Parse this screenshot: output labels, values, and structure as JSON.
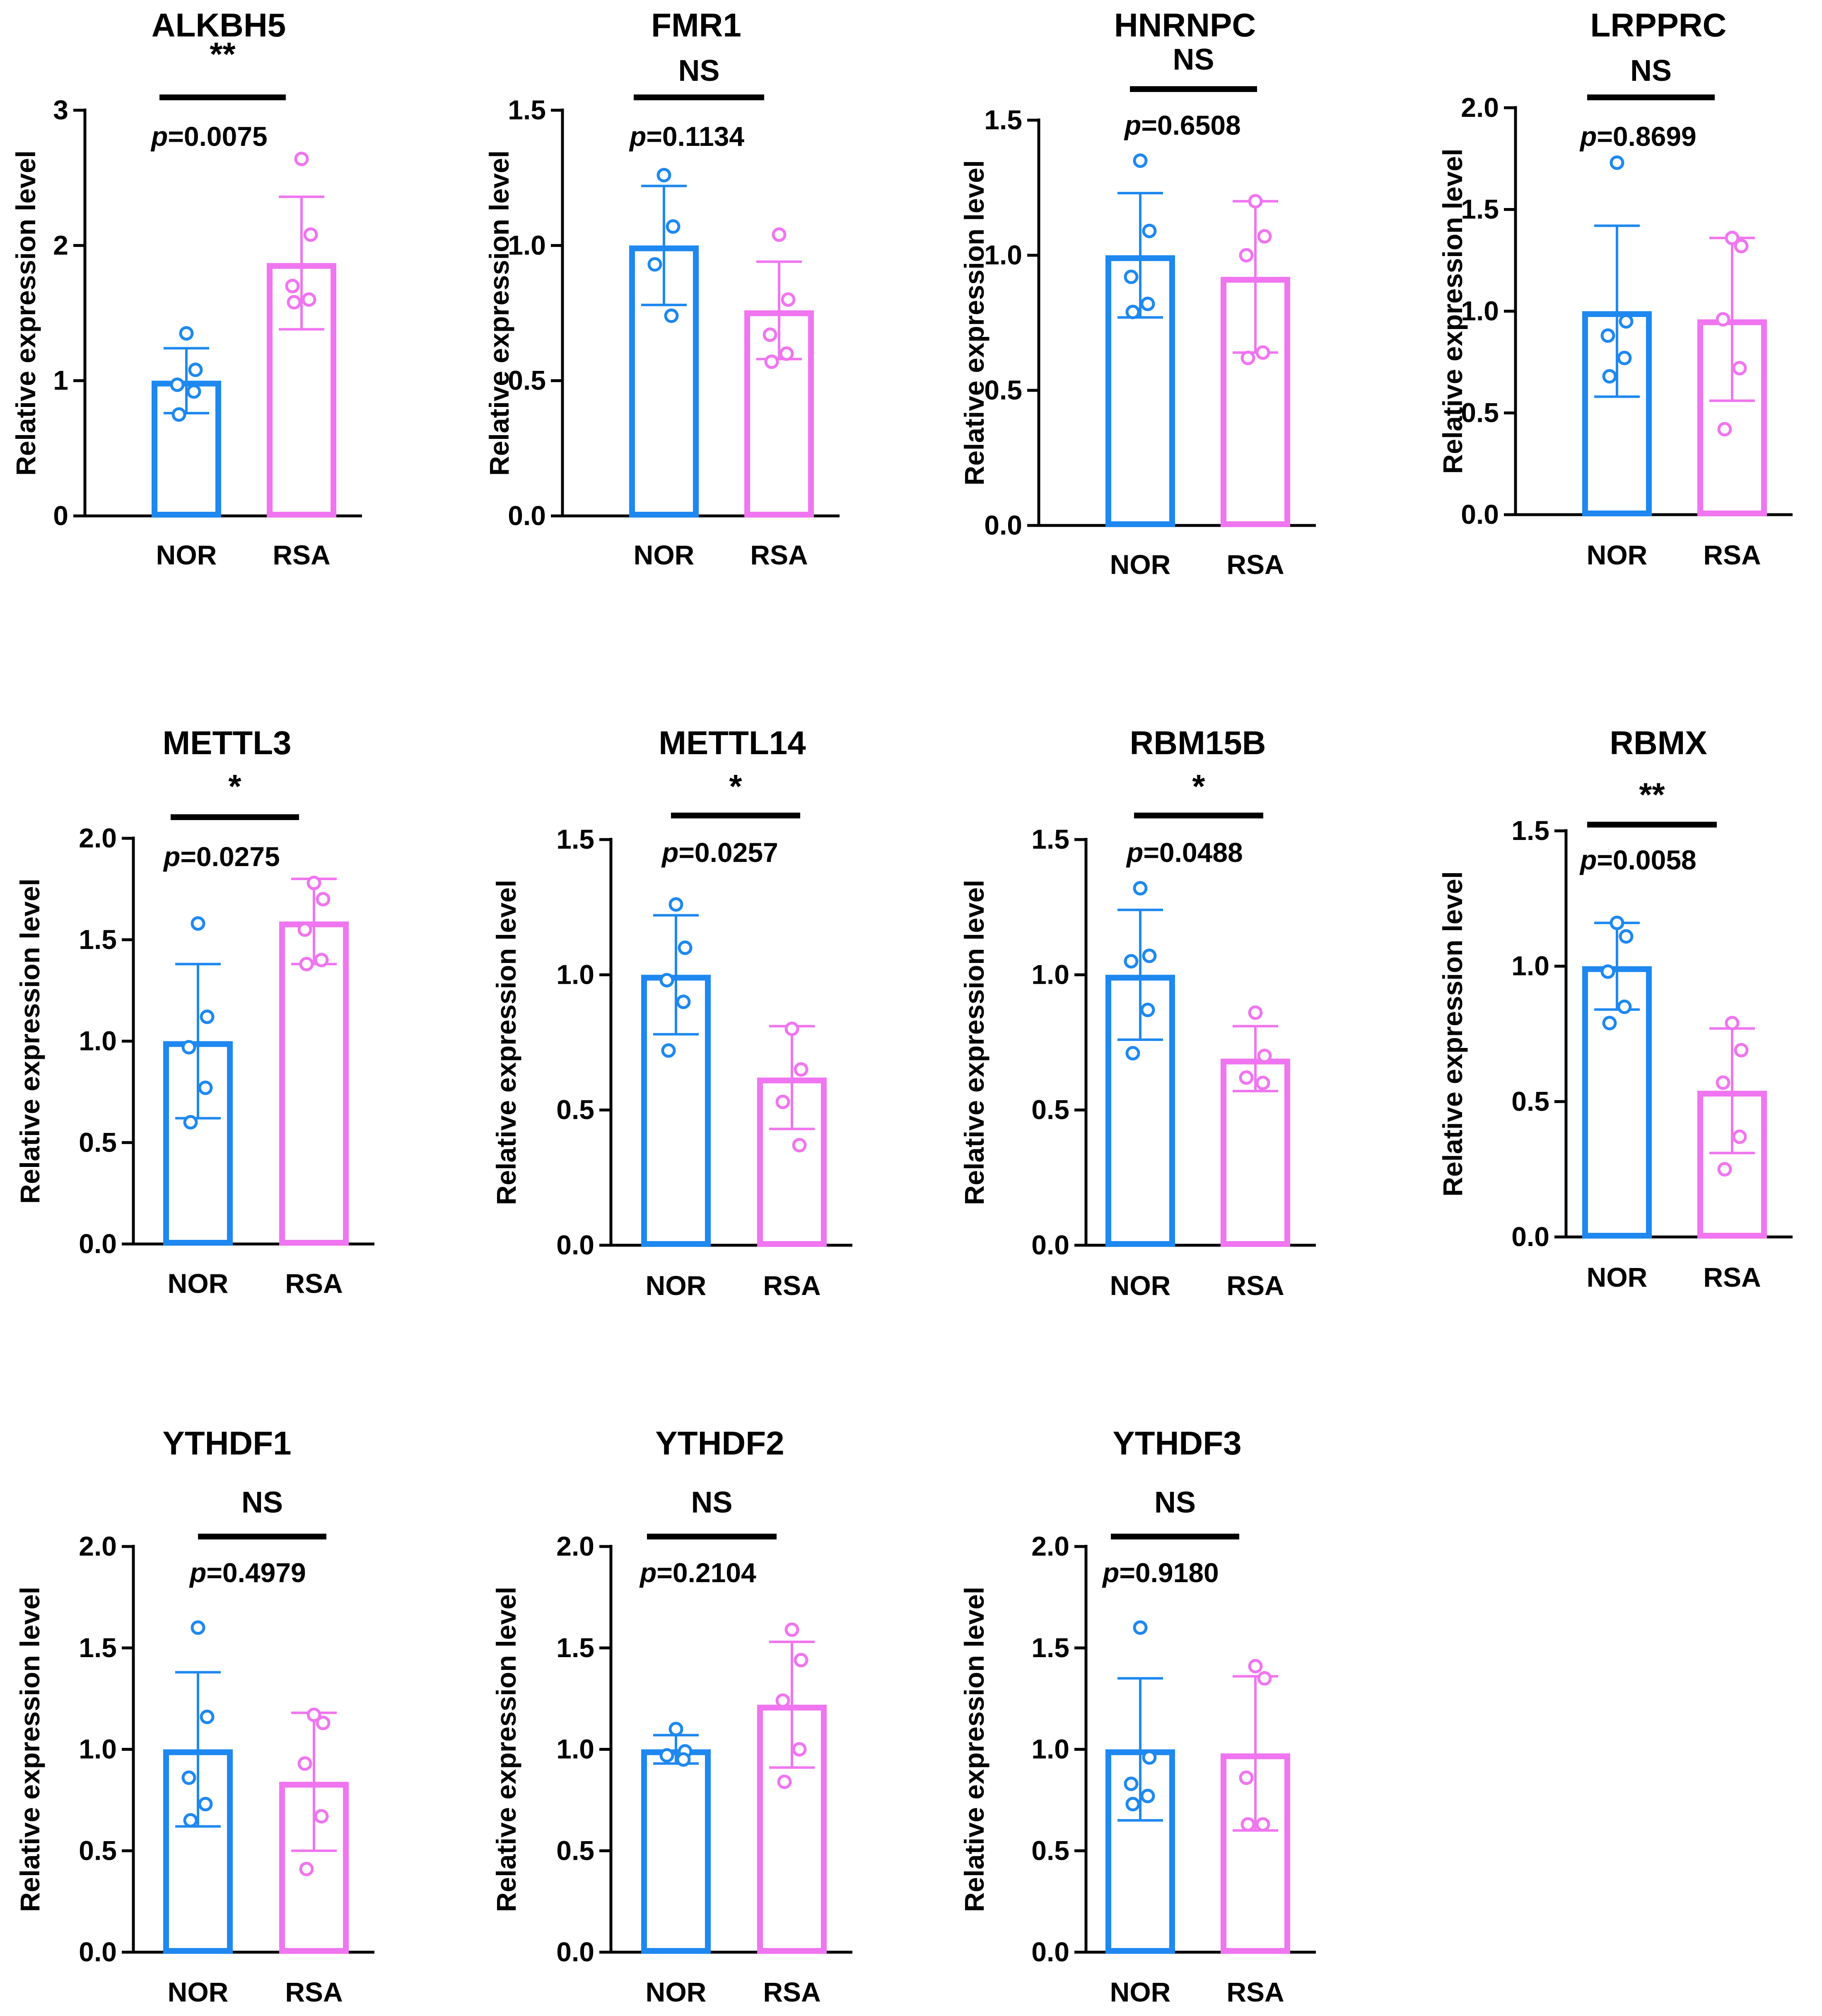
{
  "colors": {
    "nor": "#1E88F0",
    "rsa": "#F075F0",
    "axis": "#000000"
  },
  "ylabel": "Relative expression level",
  "chart_data": [
    {
      "type": "bar",
      "title": "ALKBH5",
      "categories": [
        "NOR",
        "RSA"
      ],
      "ylabel": "Relative expression level",
      "ylim": [
        0,
        3
      ],
      "yticks": [
        "0",
        "1",
        "2",
        "3"
      ],
      "values": [
        1.0,
        1.87
      ],
      "errors": [
        0.24,
        0.49
      ],
      "points": [
        [
          1.35,
          1.08,
          0.97,
          0.92,
          0.75
        ],
        [
          2.64,
          2.08,
          1.7,
          1.6,
          1.58
        ]
      ],
      "significance": "**",
      "p_label": "p",
      "p_value": "=0.0075"
    },
    {
      "type": "bar",
      "title": "FMR1",
      "categories": [
        "NOR",
        "RSA"
      ],
      "ylabel": "Relative expression level",
      "ylim": [
        0,
        1.5
      ],
      "yticks": [
        "0.0",
        "0.5",
        "1.0",
        "1.5"
      ],
      "values": [
        1.0,
        0.76
      ],
      "errors": [
        0.22,
        0.18
      ],
      "points": [
        [
          1.26,
          1.07,
          0.93,
          0.74
        ],
        [
          1.04,
          0.8,
          0.67,
          0.6,
          0.57
        ]
      ],
      "significance": "NS",
      "p_label": "p",
      "p_value": "=0.1134"
    },
    {
      "type": "bar",
      "title": "HNRNPC",
      "categories": [
        "NOR",
        "RSA"
      ],
      "ylabel": "Relative expression level",
      "ylim": [
        0,
        1.5
      ],
      "yticks": [
        "0.0",
        "0.5",
        "1.0",
        "1.5"
      ],
      "values": [
        1.0,
        0.92
      ],
      "errors": [
        0.23,
        0.28
      ],
      "points": [
        [
          1.35,
          1.09,
          0.92,
          0.82,
          0.79
        ],
        [
          1.2,
          1.07,
          1.0,
          0.64,
          0.62
        ]
      ],
      "significance": "NS",
      "p_label": "p",
      "p_value": "=0.6508"
    },
    {
      "type": "bar",
      "title": "LRPPRC",
      "categories": [
        "NOR",
        "RSA"
      ],
      "ylabel": "Relative expression level",
      "ylim": [
        0,
        2
      ],
      "yticks": [
        "0.0",
        "0.5",
        "1.0",
        "1.5",
        "2.0"
      ],
      "values": [
        1.0,
        0.96
      ],
      "errors": [
        0.42,
        0.4
      ],
      "points": [
        [
          1.73,
          0.95,
          0.88,
          0.77,
          0.68
        ],
        [
          1.36,
          1.32,
          0.96,
          0.72,
          0.42
        ]
      ],
      "significance": "NS",
      "p_label": "p",
      "p_value": "=0.8699"
    },
    {
      "type": "bar",
      "title": "METTL3",
      "categories": [
        "NOR",
        "RSA"
      ],
      "ylabel": "Relative expression level",
      "ylim": [
        0,
        2
      ],
      "yticks": [
        "0.0",
        "0.5",
        "1.0",
        "1.5",
        "2.0"
      ],
      "values": [
        1.0,
        1.59
      ],
      "errors": [
        0.38,
        0.21
      ],
      "points": [
        [
          1.58,
          1.12,
          0.97,
          0.77,
          0.6
        ],
        [
          1.78,
          1.7,
          1.55,
          1.4,
          1.38
        ]
      ],
      "significance": "*",
      "p_label": "p",
      "p_value": "=0.0275"
    },
    {
      "type": "bar",
      "title": "METTL14",
      "categories": [
        "NOR",
        "RSA"
      ],
      "ylabel": "Relative expression level",
      "ylim": [
        0,
        1.5
      ],
      "yticks": [
        "0.0",
        "0.5",
        "1.0",
        "1.5"
      ],
      "values": [
        1.0,
        0.62
      ],
      "errors": [
        0.22,
        0.19
      ],
      "points": [
        [
          1.26,
          1.1,
          0.98,
          0.9,
          0.72
        ],
        [
          0.8,
          0.65,
          0.53,
          0.37
        ]
      ],
      "significance": "*",
      "p_label": "p",
      "p_value": "=0.0257"
    },
    {
      "type": "bar",
      "title": "RBM15B",
      "categories": [
        "NOR",
        "RSA"
      ],
      "ylabel": "Relative expression level",
      "ylim": [
        0,
        1.5
      ],
      "yticks": [
        "0.0",
        "0.5",
        "1.0",
        "1.5"
      ],
      "values": [
        1.0,
        0.69
      ],
      "errors": [
        0.24,
        0.12
      ],
      "points": [
        [
          1.32,
          1.07,
          1.05,
          0.87,
          0.71
        ],
        [
          0.86,
          0.7,
          0.62,
          0.6
        ]
      ],
      "significance": "*",
      "p_label": "p",
      "p_value": "=0.0488"
    },
    {
      "type": "bar",
      "title": "RBMX",
      "categories": [
        "NOR",
        "RSA"
      ],
      "ylabel": "Relative expression level",
      "ylim": [
        0,
        1.5
      ],
      "yticks": [
        "0.0",
        "0.5",
        "1.0",
        "1.5"
      ],
      "values": [
        1.0,
        0.54
      ],
      "errors": [
        0.16,
        0.23
      ],
      "points": [
        [
          1.16,
          1.11,
          0.98,
          0.85,
          0.79
        ],
        [
          0.79,
          0.69,
          0.57,
          0.37,
          0.25
        ]
      ],
      "significance": "**",
      "p_label": "p",
      "p_value": "=0.0058"
    },
    {
      "type": "bar",
      "title": "YTHDF1",
      "categories": [
        "NOR",
        "RSA"
      ],
      "ylabel": "Relative expression level",
      "ylim": [
        0,
        2
      ],
      "yticks": [
        "0.0",
        "0.5",
        "1.0",
        "1.5",
        "2.0"
      ],
      "values": [
        1.0,
        0.84
      ],
      "errors": [
        0.38,
        0.34
      ],
      "points": [
        [
          1.6,
          1.16,
          0.86,
          0.73,
          0.65
        ],
        [
          1.17,
          1.13,
          0.93,
          0.67,
          0.41
        ]
      ],
      "significance": "NS",
      "p_label": "p",
      "p_value": "=0.4979"
    },
    {
      "type": "bar",
      "title": "YTHDF2",
      "categories": [
        "NOR",
        "RSA"
      ],
      "ylabel": "Relative expression level",
      "ylim": [
        0,
        2
      ],
      "yticks": [
        "0.0",
        "0.5",
        "1.0",
        "1.5",
        "2.0"
      ],
      "values": [
        1.0,
        1.22
      ],
      "errors": [
        0.07,
        0.31
      ],
      "points": [
        [
          1.1,
          0.99,
          0.97,
          0.95
        ],
        [
          1.59,
          1.44,
          1.24,
          1.0,
          0.84
        ]
      ],
      "significance": "NS",
      "p_label": "p",
      "p_value": "=0.2104"
    },
    {
      "type": "bar",
      "title": "YTHDF3",
      "categories": [
        "NOR",
        "RSA"
      ],
      "ylabel": "Relative expression level",
      "ylim": [
        0,
        2
      ],
      "yticks": [
        "0.0",
        "0.5",
        "1.0",
        "1.5",
        "2.0"
      ],
      "values": [
        1.0,
        0.98
      ],
      "errors": [
        0.35,
        0.38
      ],
      "points": [
        [
          1.6,
          0.96,
          0.83,
          0.77,
          0.73
        ],
        [
          1.41,
          1.35,
          0.86,
          0.63,
          0.63
        ]
      ],
      "significance": "NS",
      "p_label": "p",
      "p_value": "=0.9180"
    }
  ]
}
